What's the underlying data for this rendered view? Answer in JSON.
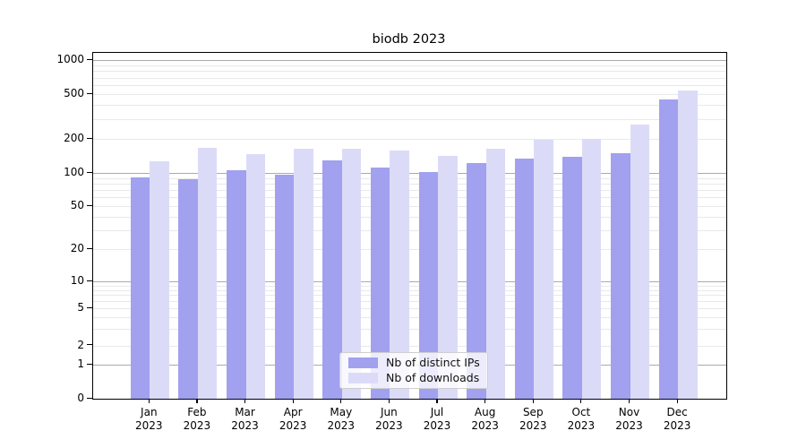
{
  "figure": {
    "title": "biodb 2023"
  },
  "chart_data": {
    "type": "bar",
    "title": "biodb 2023",
    "categories": [
      "Jan",
      "Feb",
      "Mar",
      "Apr",
      "May",
      "Jun",
      "Jul",
      "Aug",
      "Sep",
      "Oct",
      "Nov",
      "Dec"
    ],
    "year": "2023",
    "series": [
      {
        "name": "Nb of distinct IPs",
        "color": "#a1a1ef",
        "values": [
          91,
          87,
          105,
          97,
          129,
          112,
          101,
          122,
          133,
          139,
          150,
          445
        ]
      },
      {
        "name": "Nb of downloads",
        "color": "#dbdbf8",
        "values": [
          127,
          168,
          148,
          165,
          164,
          157,
          141,
          164,
          196,
          202,
          270,
          535
        ]
      }
    ],
    "xlabel": "",
    "ylabel": "",
    "yscale": "symlog",
    "y_ticks": [
      0,
      1,
      2,
      5,
      10,
      20,
      50,
      100,
      200,
      500,
      1000
    ],
    "ylim": [
      0,
      1160
    ],
    "grid": "horizontal major and minor",
    "legend_position": "lower center"
  },
  "legend": {
    "items": [
      {
        "label": "Nb of distinct IPs",
        "color": "#a1a1ef"
      },
      {
        "label": "Nb of downloads",
        "color": "#dbdbf8"
      }
    ]
  },
  "colors": {
    "background": "#ffffff",
    "bar_distinct_ips": "#a1a1ef",
    "bar_downloads": "#dbdbf8",
    "grid_major": "#ababab",
    "grid_minor": "#e9e9e9",
    "spine": "#000000",
    "legend_border": "#cfcfcf",
    "text": "#000000"
  }
}
